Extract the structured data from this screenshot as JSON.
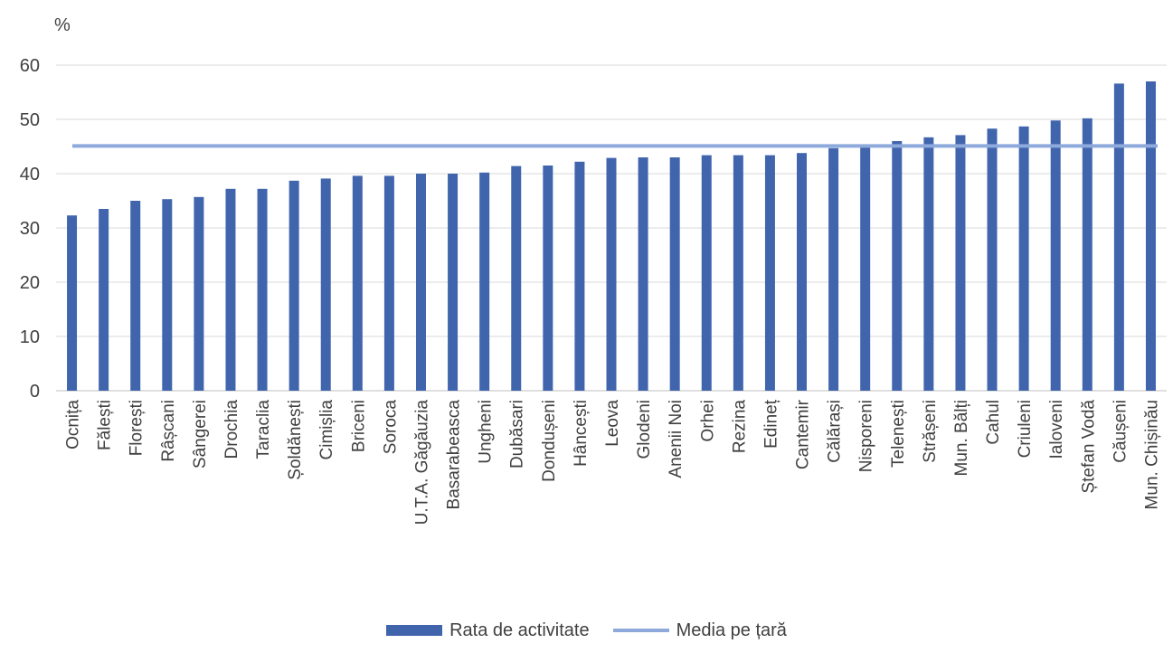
{
  "chart_data": {
    "type": "bar",
    "unit_label": "%",
    "categories": [
      "Ocnița",
      "Fălești",
      "Florești",
      "Râșcani",
      "Sângerei",
      "Drochia",
      "Taraclia",
      "Șoldănești",
      "Cimișlia",
      "Briceni",
      "Soroca",
      "U.T.A. Găgăuzia",
      "Basarabeasca",
      "Ungheni",
      "Dubăsari",
      "Dondușeni",
      "Hâncești",
      "Leova",
      "Glodeni",
      "Anenii Noi",
      "Orhei",
      "Rezina",
      "Edineț",
      "Cantemir",
      "Călărași",
      "Nisporeni",
      "Telenești",
      "Strășeni",
      "Mun. Bălți",
      "Cahul",
      "Criuleni",
      "Ialoveni",
      "Ștefan Vodă",
      "Căușeni",
      "Mun. Chișinău"
    ],
    "series": [
      {
        "name": "Rata de activitate",
        "type": "bar",
        "color": "#4165ad",
        "values": [
          32.3,
          33.5,
          35.0,
          35.3,
          35.7,
          37.2,
          37.2,
          38.7,
          39.1,
          39.6,
          39.6,
          40.0,
          40.0,
          40.2,
          41.4,
          41.5,
          42.2,
          42.9,
          43.0,
          43.0,
          43.4,
          43.4,
          43.4,
          43.8,
          44.7,
          44.9,
          46.0,
          46.7,
          47.1,
          48.3,
          48.7,
          49.8,
          50.2,
          56.6,
          57.0
        ]
      },
      {
        "name": "Media pe țară",
        "type": "line",
        "color": "#8ea9db",
        "value": 45.1
      }
    ],
    "ylim": [
      0,
      60
    ],
    "yticks": [
      0,
      10,
      20,
      30,
      40,
      50,
      60
    ],
    "grid": true,
    "legend_position": "bottom"
  }
}
